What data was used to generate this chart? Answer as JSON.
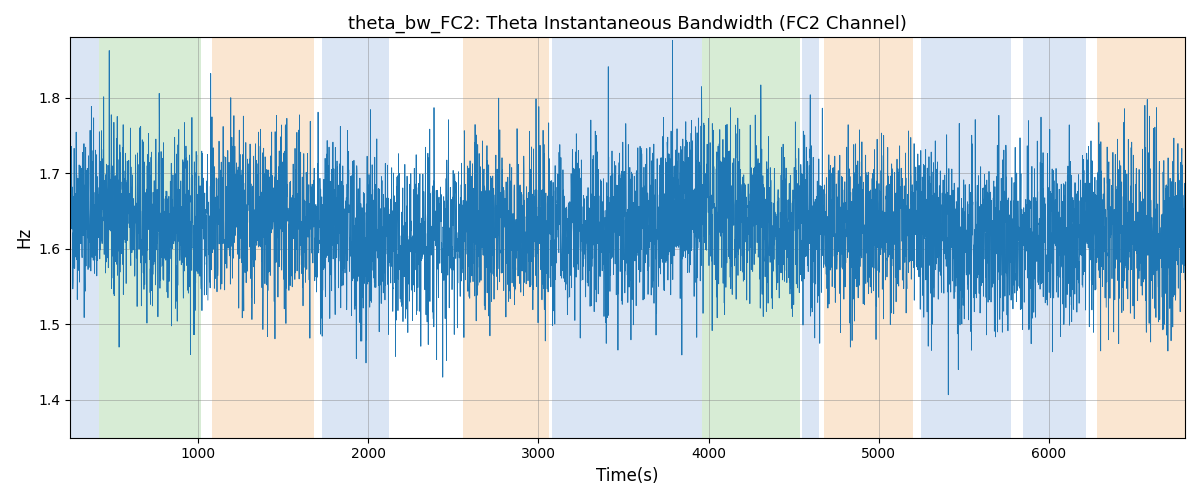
{
  "title": "theta_bw_FC2: Theta Instantaneous Bandwidth (FC2 Channel)",
  "xlabel": "Time(s)",
  "ylabel": "Hz",
  "xlim": [
    250,
    6800
  ],
  "ylim": [
    1.35,
    1.88
  ],
  "yticks": [
    1.4,
    1.5,
    1.6,
    1.7,
    1.8
  ],
  "xticks": [
    1000,
    2000,
    3000,
    4000,
    5000,
    6000
  ],
  "signal_color": "#1f77b4",
  "signal_linewidth": 0.6,
  "bands": [
    {
      "xmin": 250,
      "xmax": 420,
      "color": "#aec6e8",
      "alpha": 0.45
    },
    {
      "xmin": 420,
      "xmax": 1020,
      "color": "#a8d5a2",
      "alpha": 0.45
    },
    {
      "xmin": 1080,
      "xmax": 1680,
      "color": "#f5c99a",
      "alpha": 0.45
    },
    {
      "xmin": 1730,
      "xmax": 2120,
      "color": "#aec6e8",
      "alpha": 0.45
    },
    {
      "xmin": 2560,
      "xmax": 3060,
      "color": "#f5c99a",
      "alpha": 0.45
    },
    {
      "xmin": 3080,
      "xmax": 3960,
      "color": "#aec6e8",
      "alpha": 0.45
    },
    {
      "xmin": 3960,
      "xmax": 4540,
      "color": "#a8d5a2",
      "alpha": 0.45
    },
    {
      "xmin": 4550,
      "xmax": 4650,
      "color": "#aec6e8",
      "alpha": 0.45
    },
    {
      "xmin": 4680,
      "xmax": 5200,
      "color": "#f5c99a",
      "alpha": 0.45
    },
    {
      "xmin": 5250,
      "xmax": 5780,
      "color": "#aec6e8",
      "alpha": 0.45
    },
    {
      "xmin": 5850,
      "xmax": 6220,
      "color": "#aec6e8",
      "alpha": 0.45
    },
    {
      "xmin": 6280,
      "xmax": 6800,
      "color": "#f5c99a",
      "alpha": 0.45
    }
  ],
  "seed": 42,
  "n_points": 6000,
  "t_start": 250,
  "t_end": 6800,
  "mean": 1.63,
  "noise_std": 0.055,
  "figsize": [
    12,
    5
  ],
  "dpi": 100
}
